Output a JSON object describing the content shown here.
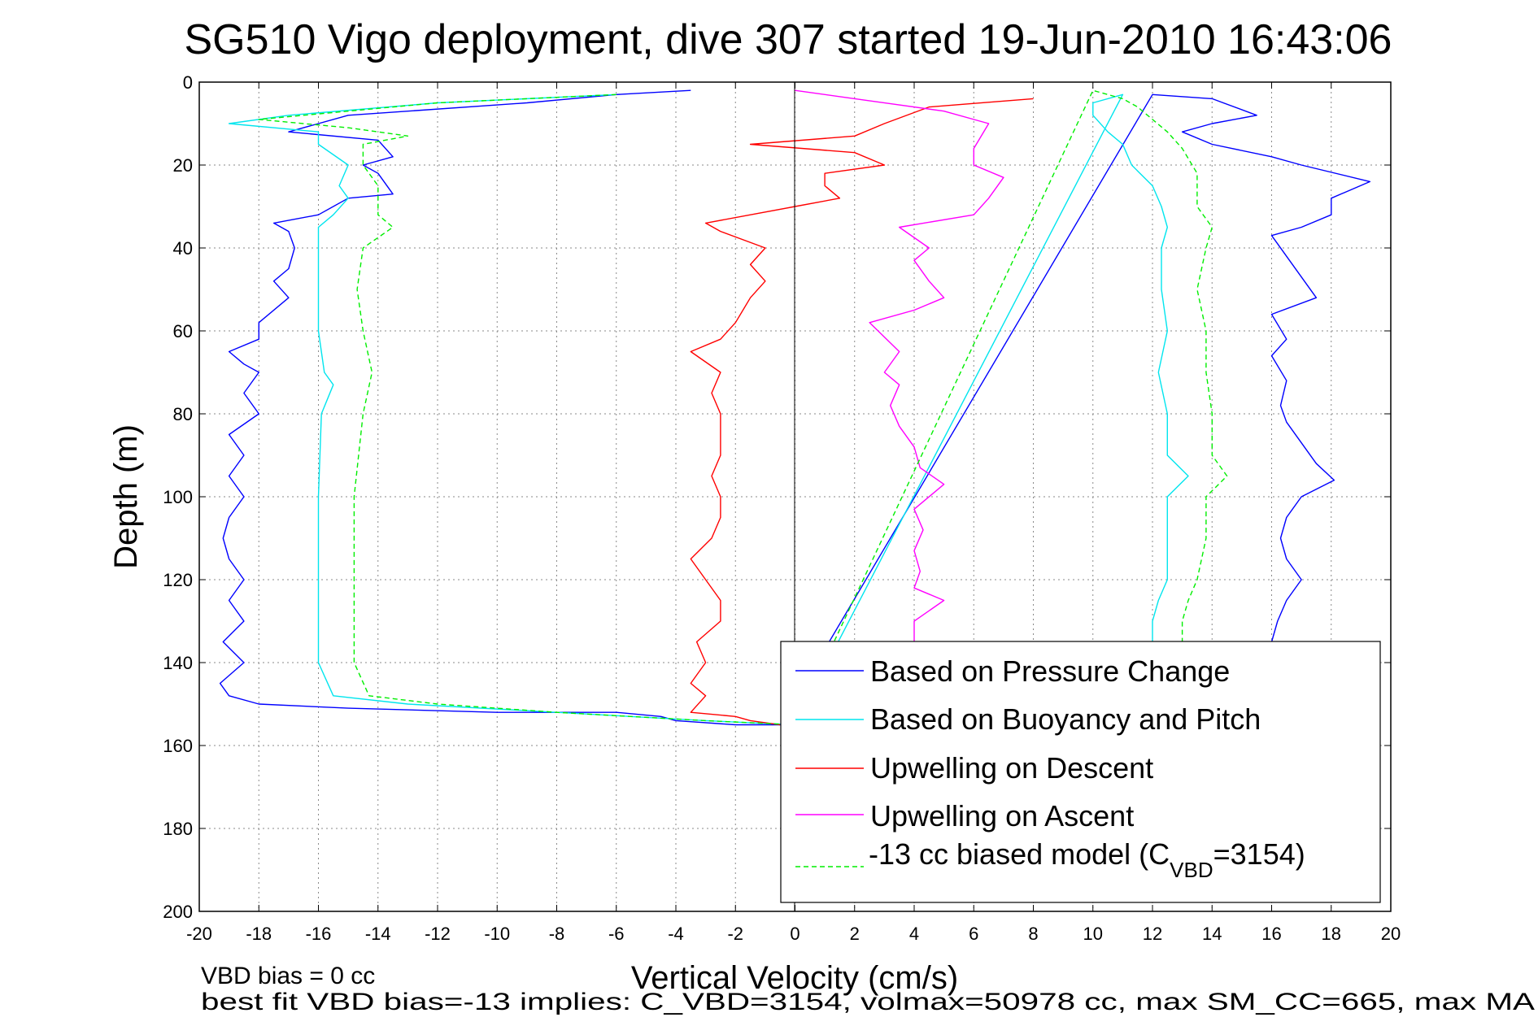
{
  "chart_data": {
    "type": "line",
    "title": "SG510 Vigo deployment, dive 307 started 19-Jun-2010 16:43:06",
    "xlabel": "Vertical Velocity (cm/s)",
    "ylabel": "Depth (m)",
    "xlim": [
      -20,
      20
    ],
    "ylim": [
      0,
      200
    ],
    "y_reversed": true,
    "grid": true,
    "x_ticks": [
      "-20",
      "-18",
      "-16",
      "-14",
      "-12",
      "-10",
      "-8",
      "-6",
      "-4",
      "-2",
      "0",
      "2",
      "4",
      "6",
      "8",
      "10",
      "12",
      "14",
      "16",
      "18",
      "20"
    ],
    "y_ticks": [
      "0",
      "20",
      "40",
      "60",
      "80",
      "100",
      "120",
      "140",
      "160",
      "180",
      "200"
    ],
    "legend_position": "bottom-right",
    "series": [
      {
        "name": "Based on Pressure Change",
        "color": "#0000ff",
        "dash": false,
        "points": [
          [
            -3.5,
            2
          ],
          [
            -6,
            3
          ],
          [
            -9,
            5
          ],
          [
            -15,
            8
          ],
          [
            -17,
            12
          ],
          [
            -14,
            14
          ],
          [
            -13.5,
            18
          ],
          [
            -14.5,
            20
          ],
          [
            -14,
            22
          ],
          [
            -13.5,
            27
          ],
          [
            -15,
            28
          ],
          [
            -16,
            32
          ],
          [
            -17.5,
            34
          ],
          [
            -17,
            36
          ],
          [
            -16.8,
            40
          ],
          [
            -17,
            45
          ],
          [
            -17.5,
            48
          ],
          [
            -17,
            52
          ],
          [
            -18,
            58
          ],
          [
            -18,
            62
          ],
          [
            -19,
            65
          ],
          [
            -18.5,
            68
          ],
          [
            -18,
            70
          ],
          [
            -18.5,
            75
          ],
          [
            -18,
            80
          ],
          [
            -19,
            85
          ],
          [
            -18.5,
            90
          ],
          [
            -19,
            95
          ],
          [
            -18.5,
            100
          ],
          [
            -19,
            105
          ],
          [
            -19.2,
            110
          ],
          [
            -19,
            115
          ],
          [
            -18.5,
            120
          ],
          [
            -19,
            125
          ],
          [
            -18.5,
            130
          ],
          [
            -19.2,
            135
          ],
          [
            -18.5,
            140
          ],
          [
            -19.3,
            145
          ],
          [
            -19,
            148
          ],
          [
            -18,
            150
          ],
          [
            -15,
            151
          ],
          [
            -10,
            152
          ],
          [
            -6,
            152
          ],
          [
            -4.5,
            153
          ],
          [
            -4,
            154
          ],
          [
            -2,
            155
          ],
          [
            -0.5,
            155
          ],
          [
            12,
            3
          ],
          [
            14,
            4
          ],
          [
            15.5,
            8
          ],
          [
            14,
            10
          ],
          [
            13,
            12
          ],
          [
            14,
            15
          ],
          [
            16,
            18
          ],
          [
            17,
            20
          ],
          [
            19.3,
            24
          ],
          [
            18,
            28
          ],
          [
            18,
            32
          ],
          [
            17,
            35
          ],
          [
            16,
            37
          ],
          [
            16.5,
            42
          ],
          [
            17,
            47
          ],
          [
            17.5,
            52
          ],
          [
            16,
            56
          ],
          [
            16.5,
            62
          ],
          [
            16,
            66
          ],
          [
            16.5,
            72
          ],
          [
            16.3,
            78
          ],
          [
            16.5,
            82
          ],
          [
            17,
            87
          ],
          [
            17.5,
            92
          ],
          [
            18.1,
            96
          ],
          [
            17,
            100
          ],
          [
            16.5,
            105
          ],
          [
            16.3,
            110
          ],
          [
            16.5,
            115
          ],
          [
            17,
            120
          ],
          [
            16.5,
            125
          ],
          [
            16.2,
            130
          ],
          [
            16,
            135
          ]
        ]
      },
      {
        "name": "Based on Buoyancy and Pitch",
        "color": "#00e5ee",
        "dash": false,
        "points": [
          [
            -6,
            3
          ],
          [
            -12,
            5
          ],
          [
            -17,
            8
          ],
          [
            -19,
            10
          ],
          [
            -16,
            12
          ],
          [
            -16,
            15
          ],
          [
            -15,
            20
          ],
          [
            -15.3,
            25
          ],
          [
            -15,
            28
          ],
          [
            -15.5,
            32
          ],
          [
            -16,
            35
          ],
          [
            -16,
            40
          ],
          [
            -16,
            50
          ],
          [
            -16,
            60
          ],
          [
            -15.8,
            70
          ],
          [
            -15.5,
            73
          ],
          [
            -15.9,
            80
          ],
          [
            -16,
            100
          ],
          [
            -16,
            120
          ],
          [
            -16,
            140
          ],
          [
            -15.5,
            148
          ],
          [
            -13,
            150
          ],
          [
            -8,
            152
          ],
          [
            -3,
            154
          ],
          [
            0,
            155
          ],
          [
            11,
            3
          ],
          [
            10,
            5
          ],
          [
            10,
            8
          ],
          [
            10.5,
            12
          ],
          [
            11,
            15
          ],
          [
            11.3,
            20
          ],
          [
            12,
            25
          ],
          [
            12.3,
            30
          ],
          [
            12.5,
            35
          ],
          [
            12.3,
            40
          ],
          [
            12.3,
            50
          ],
          [
            12.5,
            60
          ],
          [
            12.2,
            70
          ],
          [
            12.5,
            80
          ],
          [
            12.5,
            90
          ],
          [
            13.2,
            95
          ],
          [
            12.5,
            100
          ],
          [
            12.5,
            110
          ],
          [
            12.5,
            120
          ],
          [
            12.2,
            125
          ],
          [
            12,
            130
          ],
          [
            12,
            135
          ]
        ]
      },
      {
        "name": "Upwelling on Descent",
        "color": "#ff0000",
        "dash": false,
        "points": [
          [
            -0.5,
            155
          ],
          [
            -1.5,
            154
          ],
          [
            -2,
            153
          ],
          [
            -3.5,
            152
          ],
          [
            -3,
            148
          ],
          [
            -3.5,
            145
          ],
          [
            -3,
            140
          ],
          [
            -3.3,
            135
          ],
          [
            -2.5,
            130
          ],
          [
            -2.5,
            125
          ],
          [
            -3,
            120
          ],
          [
            -3.5,
            115
          ],
          [
            -2.8,
            110
          ],
          [
            -2.5,
            105
          ],
          [
            -2.5,
            100
          ],
          [
            -2.8,
            95
          ],
          [
            -2.5,
            90
          ],
          [
            -2.5,
            85
          ],
          [
            -2.5,
            80
          ],
          [
            -2.8,
            75
          ],
          [
            -2.5,
            70
          ],
          [
            -3.5,
            65
          ],
          [
            -2.5,
            62
          ],
          [
            -2,
            58
          ],
          [
            -1.5,
            52
          ],
          [
            -1,
            48
          ],
          [
            -1.5,
            44
          ],
          [
            -1,
            40
          ],
          [
            -2.5,
            36
          ],
          [
            -3,
            34
          ],
          [
            0,
            30
          ],
          [
            1.5,
            28
          ],
          [
            1,
            25
          ],
          [
            1,
            22
          ],
          [
            3,
            20
          ],
          [
            2,
            17
          ],
          [
            -1.5,
            15
          ],
          [
            2,
            13
          ],
          [
            3,
            10
          ],
          [
            4.5,
            6
          ],
          [
            8,
            4
          ]
        ]
      },
      {
        "name": "Upwelling on Ascent",
        "color": "#ff00ff",
        "dash": false,
        "points": [
          [
            4,
            135
          ],
          [
            4,
            130
          ],
          [
            5,
            125
          ],
          [
            4,
            122
          ],
          [
            4.2,
            118
          ],
          [
            4,
            113
          ],
          [
            4.3,
            108
          ],
          [
            4,
            103
          ],
          [
            5,
            97
          ],
          [
            4.2,
            93
          ],
          [
            4,
            88
          ],
          [
            3.5,
            83
          ],
          [
            3.2,
            78
          ],
          [
            3.5,
            73
          ],
          [
            3,
            70
          ],
          [
            3.5,
            65
          ],
          [
            2.5,
            58
          ],
          [
            4,
            55
          ],
          [
            5,
            52
          ],
          [
            4.5,
            48
          ],
          [
            4,
            43
          ],
          [
            4.5,
            40
          ],
          [
            3.5,
            35
          ],
          [
            6,
            32
          ],
          [
            6.5,
            28
          ],
          [
            7,
            23
          ],
          [
            6,
            20
          ],
          [
            6,
            16
          ],
          [
            6.5,
            10
          ],
          [
            5,
            7
          ],
          [
            2,
            4
          ],
          [
            0,
            2
          ]
        ]
      },
      {
        "name": "-13 cc biased model (C_VBD=3154)",
        "legend_base": "-13 cc biased model (C",
        "legend_sub": "VBD",
        "legend_tail": "=3154)",
        "color": "#00ee00",
        "dash": true,
        "points": [
          [
            -6,
            3
          ],
          [
            -12,
            5
          ],
          [
            -18,
            9
          ],
          [
            -15,
            11
          ],
          [
            -13,
            13
          ],
          [
            -14.5,
            15
          ],
          [
            -14.5,
            20
          ],
          [
            -14,
            25
          ],
          [
            -14,
            32
          ],
          [
            -13.5,
            35
          ],
          [
            -14.5,
            40
          ],
          [
            -14.7,
            50
          ],
          [
            -14.5,
            60
          ],
          [
            -14.2,
            70
          ],
          [
            -14.5,
            80
          ],
          [
            -14.8,
            100
          ],
          [
            -14.8,
            120
          ],
          [
            -14.8,
            140
          ],
          [
            -14.3,
            148
          ],
          [
            -12,
            150
          ],
          [
            -8,
            152
          ],
          [
            -3,
            154
          ],
          [
            0,
            155
          ],
          [
            10,
            2
          ],
          [
            11,
            4
          ],
          [
            11.5,
            6
          ],
          [
            12,
            9
          ],
          [
            12.5,
            12
          ],
          [
            13,
            16
          ],
          [
            13.5,
            22
          ],
          [
            13.5,
            30
          ],
          [
            14,
            35
          ],
          [
            13.8,
            40
          ],
          [
            13.5,
            50
          ],
          [
            13.8,
            60
          ],
          [
            13.8,
            70
          ],
          [
            14,
            80
          ],
          [
            14,
            90
          ],
          [
            14.5,
            95
          ],
          [
            13.8,
            100
          ],
          [
            13.8,
            110
          ],
          [
            13.5,
            120
          ],
          [
            13.2,
            125
          ],
          [
            13,
            130
          ],
          [
            13,
            135
          ]
        ]
      }
    ],
    "annotations": [
      "VBD bias = 0 cc",
      "best fit VBD bias=-13 implies: C_VBD=3154, volmax=50978 cc, max SM_CC=665, max MA"
    ]
  }
}
